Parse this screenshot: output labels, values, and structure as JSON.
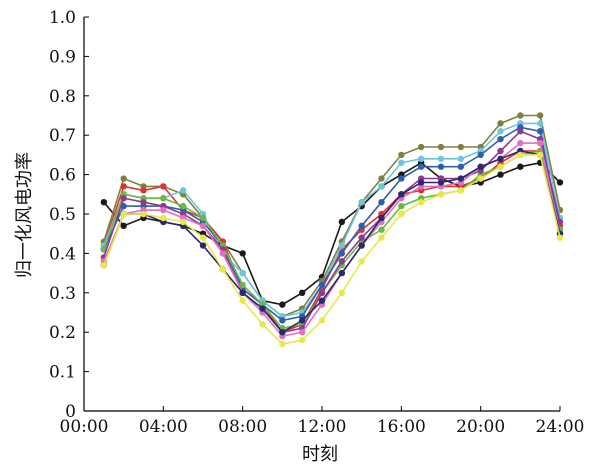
{
  "chart_data": {
    "type": "line",
    "xlabel": "时刻",
    "ylabel": "归一化风电功率",
    "x_ticks": [
      "00:00",
      "04:00",
      "08:00",
      "12:00",
      "16:00",
      "20:00",
      "24:00"
    ],
    "y_ticks": [
      "0",
      "0.1",
      "0.2",
      "0.3",
      "0.4",
      "0.5",
      "0.6",
      "0.7",
      "0.8",
      "0.9",
      "1.0"
    ],
    "xlim": [
      0,
      24
    ],
    "ylim": [
      0,
      1.0
    ],
    "grid": false,
    "x": [
      1,
      2,
      3,
      4,
      5,
      6,
      7,
      8,
      9,
      10,
      11,
      12,
      13,
      14,
      15,
      16,
      17,
      18,
      19,
      20,
      21,
      22,
      23,
      24
    ],
    "series": [
      {
        "color": "#1a1a1a",
        "values": [
          0.53,
          0.47,
          0.49,
          0.48,
          0.47,
          0.45,
          0.42,
          0.4,
          0.28,
          0.27,
          0.3,
          0.34,
          0.48,
          0.52,
          0.57,
          0.6,
          0.63,
          0.59,
          0.57,
          0.58,
          0.6,
          0.62,
          0.63,
          0.58
        ]
      },
      {
        "color": "#808040",
        "values": [
          0.43,
          0.59,
          0.57,
          0.57,
          0.55,
          0.49,
          0.43,
          0.35,
          0.28,
          0.24,
          0.26,
          0.33,
          0.43,
          0.53,
          0.59,
          0.65,
          0.67,
          0.67,
          0.67,
          0.67,
          0.73,
          0.75,
          0.75,
          0.51
        ]
      },
      {
        "color": "#e33030",
        "values": [
          0.42,
          0.57,
          0.56,
          0.57,
          0.51,
          0.49,
          0.43,
          0.31,
          0.27,
          0.2,
          0.22,
          0.31,
          0.41,
          0.46,
          0.5,
          0.55,
          0.56,
          0.57,
          0.57,
          0.59,
          0.63,
          0.66,
          0.66,
          0.47
        ]
      },
      {
        "color": "#6ec6d8",
        "values": [
          0.42,
          0.55,
          0.54,
          0.54,
          0.56,
          0.5,
          0.4,
          0.35,
          0.28,
          0.24,
          0.25,
          0.32,
          0.42,
          0.53,
          0.57,
          0.63,
          0.64,
          0.64,
          0.64,
          0.66,
          0.71,
          0.73,
          0.73,
          0.49
        ]
      },
      {
        "color": "#2e5fae",
        "values": [
          0.41,
          0.52,
          0.52,
          0.52,
          0.51,
          0.48,
          0.42,
          0.31,
          0.27,
          0.23,
          0.24,
          0.32,
          0.4,
          0.47,
          0.53,
          0.59,
          0.62,
          0.62,
          0.62,
          0.65,
          0.69,
          0.72,
          0.71,
          0.46
        ]
      },
      {
        "color": "#66bb44",
        "values": [
          0.41,
          0.55,
          0.54,
          0.54,
          0.52,
          0.49,
          0.42,
          0.32,
          0.27,
          0.21,
          0.22,
          0.3,
          0.37,
          0.43,
          0.46,
          0.52,
          0.54,
          0.55,
          0.56,
          0.6,
          0.62,
          0.65,
          0.66,
          0.46
        ]
      },
      {
        "color": "#8e3a8e",
        "values": [
          0.39,
          0.54,
          0.53,
          0.52,
          0.5,
          0.47,
          0.41,
          0.3,
          0.26,
          0.2,
          0.21,
          0.3,
          0.38,
          0.44,
          0.49,
          0.55,
          0.59,
          0.59,
          0.59,
          0.61,
          0.66,
          0.71,
          0.69,
          0.48
        ]
      },
      {
        "color": "#e36fc0",
        "values": [
          0.38,
          0.5,
          0.51,
          0.51,
          0.49,
          0.47,
          0.4,
          0.3,
          0.25,
          0.19,
          0.2,
          0.27,
          0.35,
          0.42,
          0.48,
          0.54,
          0.57,
          0.57,
          0.58,
          0.62,
          0.64,
          0.68,
          0.68,
          0.45
        ]
      },
      {
        "color": "#2a2a6e",
        "values": [
          0.37,
          0.5,
          0.5,
          0.48,
          0.47,
          0.42,
          0.36,
          0.3,
          0.26,
          0.2,
          0.23,
          0.28,
          0.35,
          0.42,
          0.49,
          0.55,
          0.58,
          0.58,
          0.59,
          0.62,
          0.64,
          0.66,
          0.65,
          0.45
        ]
      },
      {
        "color": "#e8e84a",
        "values": [
          0.37,
          0.5,
          0.5,
          0.49,
          0.48,
          0.44,
          0.36,
          0.28,
          0.22,
          0.17,
          0.18,
          0.23,
          0.3,
          0.38,
          0.44,
          0.5,
          0.53,
          0.55,
          0.56,
          0.59,
          0.62,
          0.65,
          0.65,
          0.44
        ]
      }
    ]
  }
}
